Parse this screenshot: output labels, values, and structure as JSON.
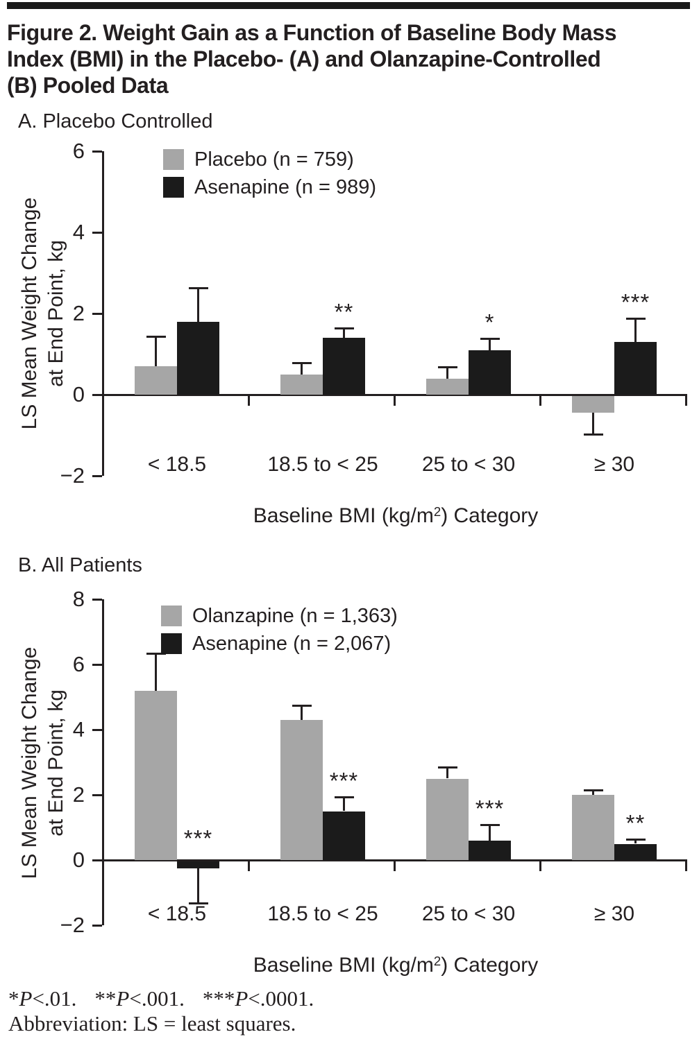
{
  "page": {
    "title": "Figure 2. Weight Gain as a Function of Baseline Body Mass Index (BMI) in the Placebo- (A) and Olanzapine-Controlled (B) Pooled Data",
    "title_lines": [
      "Figure 2. Weight Gain as a Function of Baseline Body Mass",
      "Index (BMI) in the Placebo- (A) and Olanzapine-Controlled",
      "(B) Pooled Data"
    ]
  },
  "colors": {
    "gray_bar": "#a6a6a6",
    "black_bar": "#1b1b1b",
    "text": "#231f20"
  },
  "chart_data": [
    {
      "id": "panel-a",
      "type": "bar",
      "panel_label": "A. Placebo Controlled",
      "categories": [
        "< 18.5",
        "18.5 to < 25",
        "25 to < 30",
        "≥ 30"
      ],
      "series": [
        {
          "name": "Placebo (n = 759)",
          "color": "#a6a6a6",
          "values": [
            0.7,
            0.5,
            0.4,
            -0.45
          ],
          "errors": [
            0.7,
            0.25,
            0.25,
            0.5
          ],
          "sig": [
            "",
            "",
            "",
            ""
          ]
        },
        {
          "name": "Asenapine (n = 989)",
          "color": "#1b1b1b",
          "values": [
            1.8,
            1.4,
            1.1,
            1.3
          ],
          "errors": [
            0.8,
            0.2,
            0.25,
            0.55
          ],
          "sig": [
            "",
            "**",
            "*",
            "***"
          ]
        }
      ],
      "ylabel": "LS Mean Weight Change at End Point, kg",
      "ylabel_lines": [
        "LS Mean Weight Change",
        "at End Point, kg"
      ],
      "xlabel": "Baseline BMI (kg/m²) Category",
      "xlabel_parts": {
        "pre": "Baseline BMI (kg/m",
        "sup": "2",
        "post": ") Category"
      },
      "ylim": [
        -2,
        6
      ],
      "yticks": [
        6,
        4,
        2,
        0,
        -2
      ],
      "grid": false,
      "legend_position": "top-left-inside",
      "error_bars": "one-sided, extending away from zero"
    },
    {
      "id": "panel-b",
      "type": "bar",
      "panel_label": "B. All Patients",
      "categories": [
        "< 18.5",
        "18.5 to < 25",
        "25 to < 30",
        "≥ 30"
      ],
      "series": [
        {
          "name": "Olanzapine (n = 1,363)",
          "color": "#a6a6a6",
          "values": [
            5.2,
            4.3,
            2.5,
            2.0
          ],
          "errors": [
            1.1,
            0.4,
            0.3,
            0.1
          ],
          "sig": [
            "",
            "",
            "",
            ""
          ]
        },
        {
          "name": "Asenapine (n = 2,067)",
          "color": "#1b1b1b",
          "values": [
            -0.25,
            1.5,
            0.6,
            0.5
          ],
          "errors": [
            1.05,
            0.4,
            0.45,
            0.1
          ],
          "sig": [
            "***",
            "***",
            "***",
            "**"
          ]
        }
      ],
      "ylabel": "LS Mean Weight Change at End Point, kg",
      "ylabel_lines": [
        "LS Mean Weight Change",
        "at End Point, kg"
      ],
      "xlabel": "Baseline BMI (kg/m²) Category",
      "xlabel_parts": {
        "pre": "Baseline BMI (kg/m",
        "sup": "2",
        "post": ") Category"
      },
      "ylim": [
        -2,
        8
      ],
      "yticks": [
        8,
        6,
        4,
        2,
        0,
        -2
      ],
      "grid": false,
      "legend_position": "top-left-inside",
      "error_bars": "one-sided, extending away from zero"
    }
  ],
  "footnotes": {
    "significance": {
      "items": [
        {
          "stars": "*",
          "p": "P",
          "rest": "<.01."
        },
        {
          "stars": "**",
          "p": "P",
          "rest": "<.001."
        },
        {
          "stars": "***",
          "p": "P",
          "rest": "<.0001."
        }
      ]
    },
    "abbreviation": "Abbreviation: LS = least squares."
  }
}
